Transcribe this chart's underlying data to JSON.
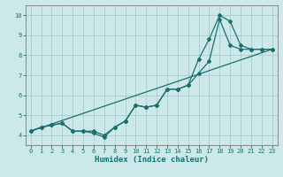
{
  "xlabel": "Humidex (Indice chaleur)",
  "ylabel": "",
  "xlim": [
    -0.5,
    23.5
  ],
  "ylim": [
    3.5,
    10.5
  ],
  "yticks": [
    4,
    5,
    6,
    7,
    8,
    9,
    10
  ],
  "xticks": [
    0,
    1,
    2,
    3,
    4,
    5,
    6,
    7,
    8,
    9,
    10,
    11,
    12,
    13,
    14,
    15,
    16,
    17,
    18,
    19,
    20,
    21,
    22,
    23
  ],
  "background_color": "#cce8e8",
  "grid_color": "#aacccc",
  "line_color": "#1a7070",
  "line1_x": [
    0,
    1,
    2,
    3,
    4,
    5,
    6,
    7,
    8,
    9,
    10,
    11,
    12,
    13,
    14,
    15,
    16,
    17,
    18,
    19,
    20,
    21,
    22,
    23
  ],
  "line1_y": [
    4.2,
    4.4,
    4.5,
    4.6,
    4.2,
    4.2,
    4.2,
    4.0,
    4.4,
    4.7,
    5.5,
    5.4,
    5.5,
    6.3,
    6.3,
    6.5,
    7.8,
    8.8,
    10.0,
    9.7,
    8.5,
    8.3,
    8.3,
    8.3
  ],
  "line2_x": [
    0,
    1,
    2,
    3,
    4,
    5,
    6,
    7,
    8,
    9,
    10,
    11,
    12,
    13,
    14,
    15,
    16,
    17,
    18,
    19,
    20,
    21,
    22,
    23
  ],
  "line2_y": [
    4.2,
    4.4,
    4.5,
    4.6,
    4.2,
    4.2,
    4.1,
    3.9,
    4.4,
    4.7,
    5.5,
    5.4,
    5.5,
    6.3,
    6.3,
    6.5,
    7.1,
    7.7,
    9.8,
    8.5,
    8.3,
    8.3,
    8.3,
    8.3
  ],
  "line3_x": [
    0,
    23
  ],
  "line3_y": [
    4.2,
    8.3
  ],
  "marker_style": "D",
  "marker_size": 2.0,
  "linewidth": 0.9
}
